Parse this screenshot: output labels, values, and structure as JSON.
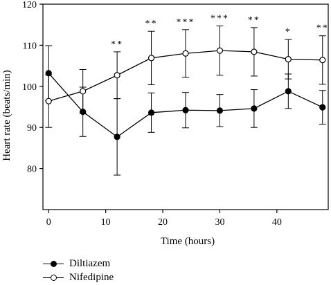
{
  "chart_data": {
    "type": "line",
    "title": "",
    "xlabel": "Time (hours)",
    "ylabel": "Heart rate (beats/min)",
    "xlim": [
      -1,
      49
    ],
    "ylim": [
      70,
      120
    ],
    "xticks": [
      "0",
      "10",
      "20",
      "30",
      "40"
    ],
    "yticks": [
      "80",
      "90",
      "100",
      "110",
      "120"
    ],
    "grid": false,
    "legend_position": "bottom-left",
    "x": [
      0,
      6,
      12,
      18,
      24,
      30,
      36,
      42,
      48
    ],
    "series": [
      {
        "name": "Diltiazem",
        "marker": "filled-circle",
        "values": [
          103.2,
          93.8,
          87.7,
          93.6,
          94.2,
          94.1,
          94.6,
          98.8,
          94.9
        ],
        "error": [
          6.7,
          6.0,
          9.3,
          4.8,
          4.3,
          3.9,
          4.6,
          4.2,
          4.1
        ]
      },
      {
        "name": "Nifedipine",
        "marker": "open-circle",
        "values": [
          96.4,
          98.8,
          102.7,
          106.9,
          108.0,
          108.7,
          108.4,
          106.6,
          106.4
        ],
        "error": [
          6.4,
          5.3,
          5.7,
          6.5,
          5.8,
          6.0,
          5.9,
          4.8,
          5.9
        ]
      }
    ],
    "annotations": [
      "",
      "",
      "**",
      "**",
      "***",
      "***",
      "**",
      "*",
      "**"
    ]
  }
}
